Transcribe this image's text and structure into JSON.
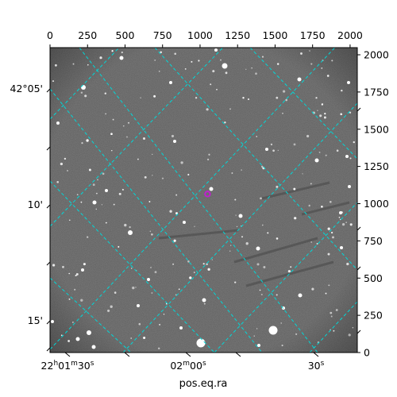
{
  "chart_data": {
    "type": "scatter",
    "title": "",
    "xlabel": "pos.eq.ra",
    "ylabel": "",
    "pixel_axes": {
      "x_ticks": [
        "0",
        "250",
        "500",
        "750",
        "1000",
        "1250",
        "1500",
        "1750",
        "2000"
      ],
      "y_ticks": [
        "0",
        "250",
        "500",
        "750",
        "1000",
        "1250",
        "1500",
        "1750",
        "2000"
      ],
      "xlim": [
        0,
        2048
      ],
      "ylim": [
        0,
        2048
      ]
    },
    "world_axes": {
      "ra_ticks": [
        {
          "h": "22",
          "hsup": "h",
          "m": "01",
          "msup": "m",
          "s": "30",
          "ssup": "s"
        },
        {
          "h": "",
          "hsup": "",
          "m": "02",
          "msup": "m",
          "s": "00",
          "ssup": "s"
        },
        {
          "h": "",
          "hsup": "",
          "m": "",
          "msup": "",
          "s": "30",
          "ssup": "s"
        }
      ],
      "dec_ticks": [
        "42°05'",
        "10'",
        "15'"
      ]
    },
    "grid": true,
    "grid_color": "#00d8d8",
    "marker": {
      "x": 1050,
      "y": 1065,
      "color": "#c020d0"
    },
    "image_style": {
      "background": "#5a5a5a",
      "star_color": "#ffffff"
    }
  }
}
